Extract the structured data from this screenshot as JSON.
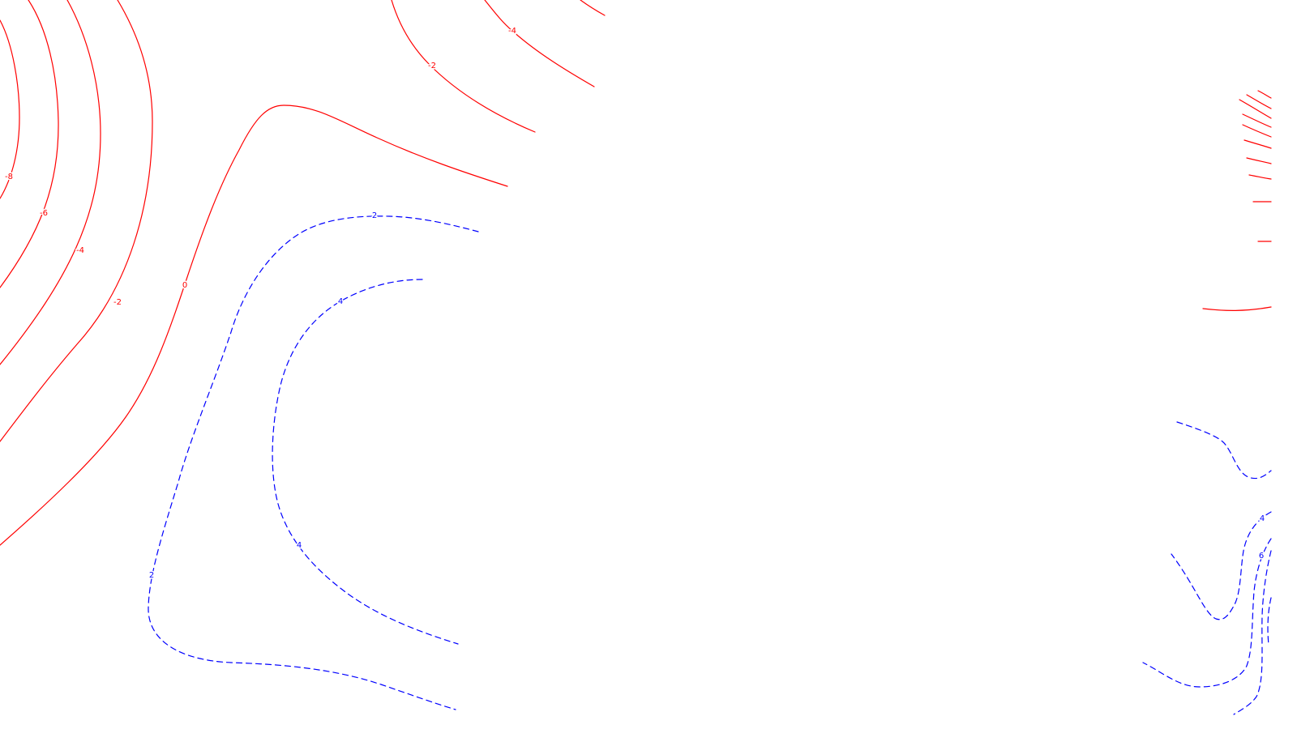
{
  "colors": {
    "negative": "#ff0000",
    "positive": "#0000ff",
    "background": "#ffffff"
  },
  "line_styles": {
    "negative": "solid",
    "positive": "dashed"
  },
  "contour_levels": {
    "negative": [
      "-8",
      "-6",
      "-4",
      "-2",
      "0"
    ],
    "positive": [
      "2",
      "4",
      "6"
    ]
  },
  "labels": [
    {
      "id": "label-neg-8-left",
      "text": "-8",
      "sign": "negative"
    },
    {
      "id": "label-neg-6-left",
      "text": "-6",
      "sign": "negative"
    },
    {
      "id": "label-neg-4-left",
      "text": "-4",
      "sign": "negative"
    },
    {
      "id": "label-neg-2-left",
      "text": "-2",
      "sign": "negative"
    },
    {
      "id": "label-zero-left",
      "text": "0",
      "sign": "negative"
    },
    {
      "id": "label-neg-2-top",
      "text": "-2",
      "sign": "negative"
    },
    {
      "id": "label-neg-4-top",
      "text": "-4",
      "sign": "negative"
    },
    {
      "id": "label-pos-2-top",
      "text": "2",
      "sign": "positive"
    },
    {
      "id": "label-pos-4-upper",
      "text": "4",
      "sign": "positive"
    },
    {
      "id": "label-pos-4-lower",
      "text": "4",
      "sign": "positive"
    },
    {
      "id": "label-pos-2-lower",
      "text": "2",
      "sign": "positive"
    },
    {
      "id": "label-pos-4-right",
      "text": "4",
      "sign": "positive"
    },
    {
      "id": "label-pos-6-right",
      "text": "6",
      "sign": "positive"
    }
  ]
}
